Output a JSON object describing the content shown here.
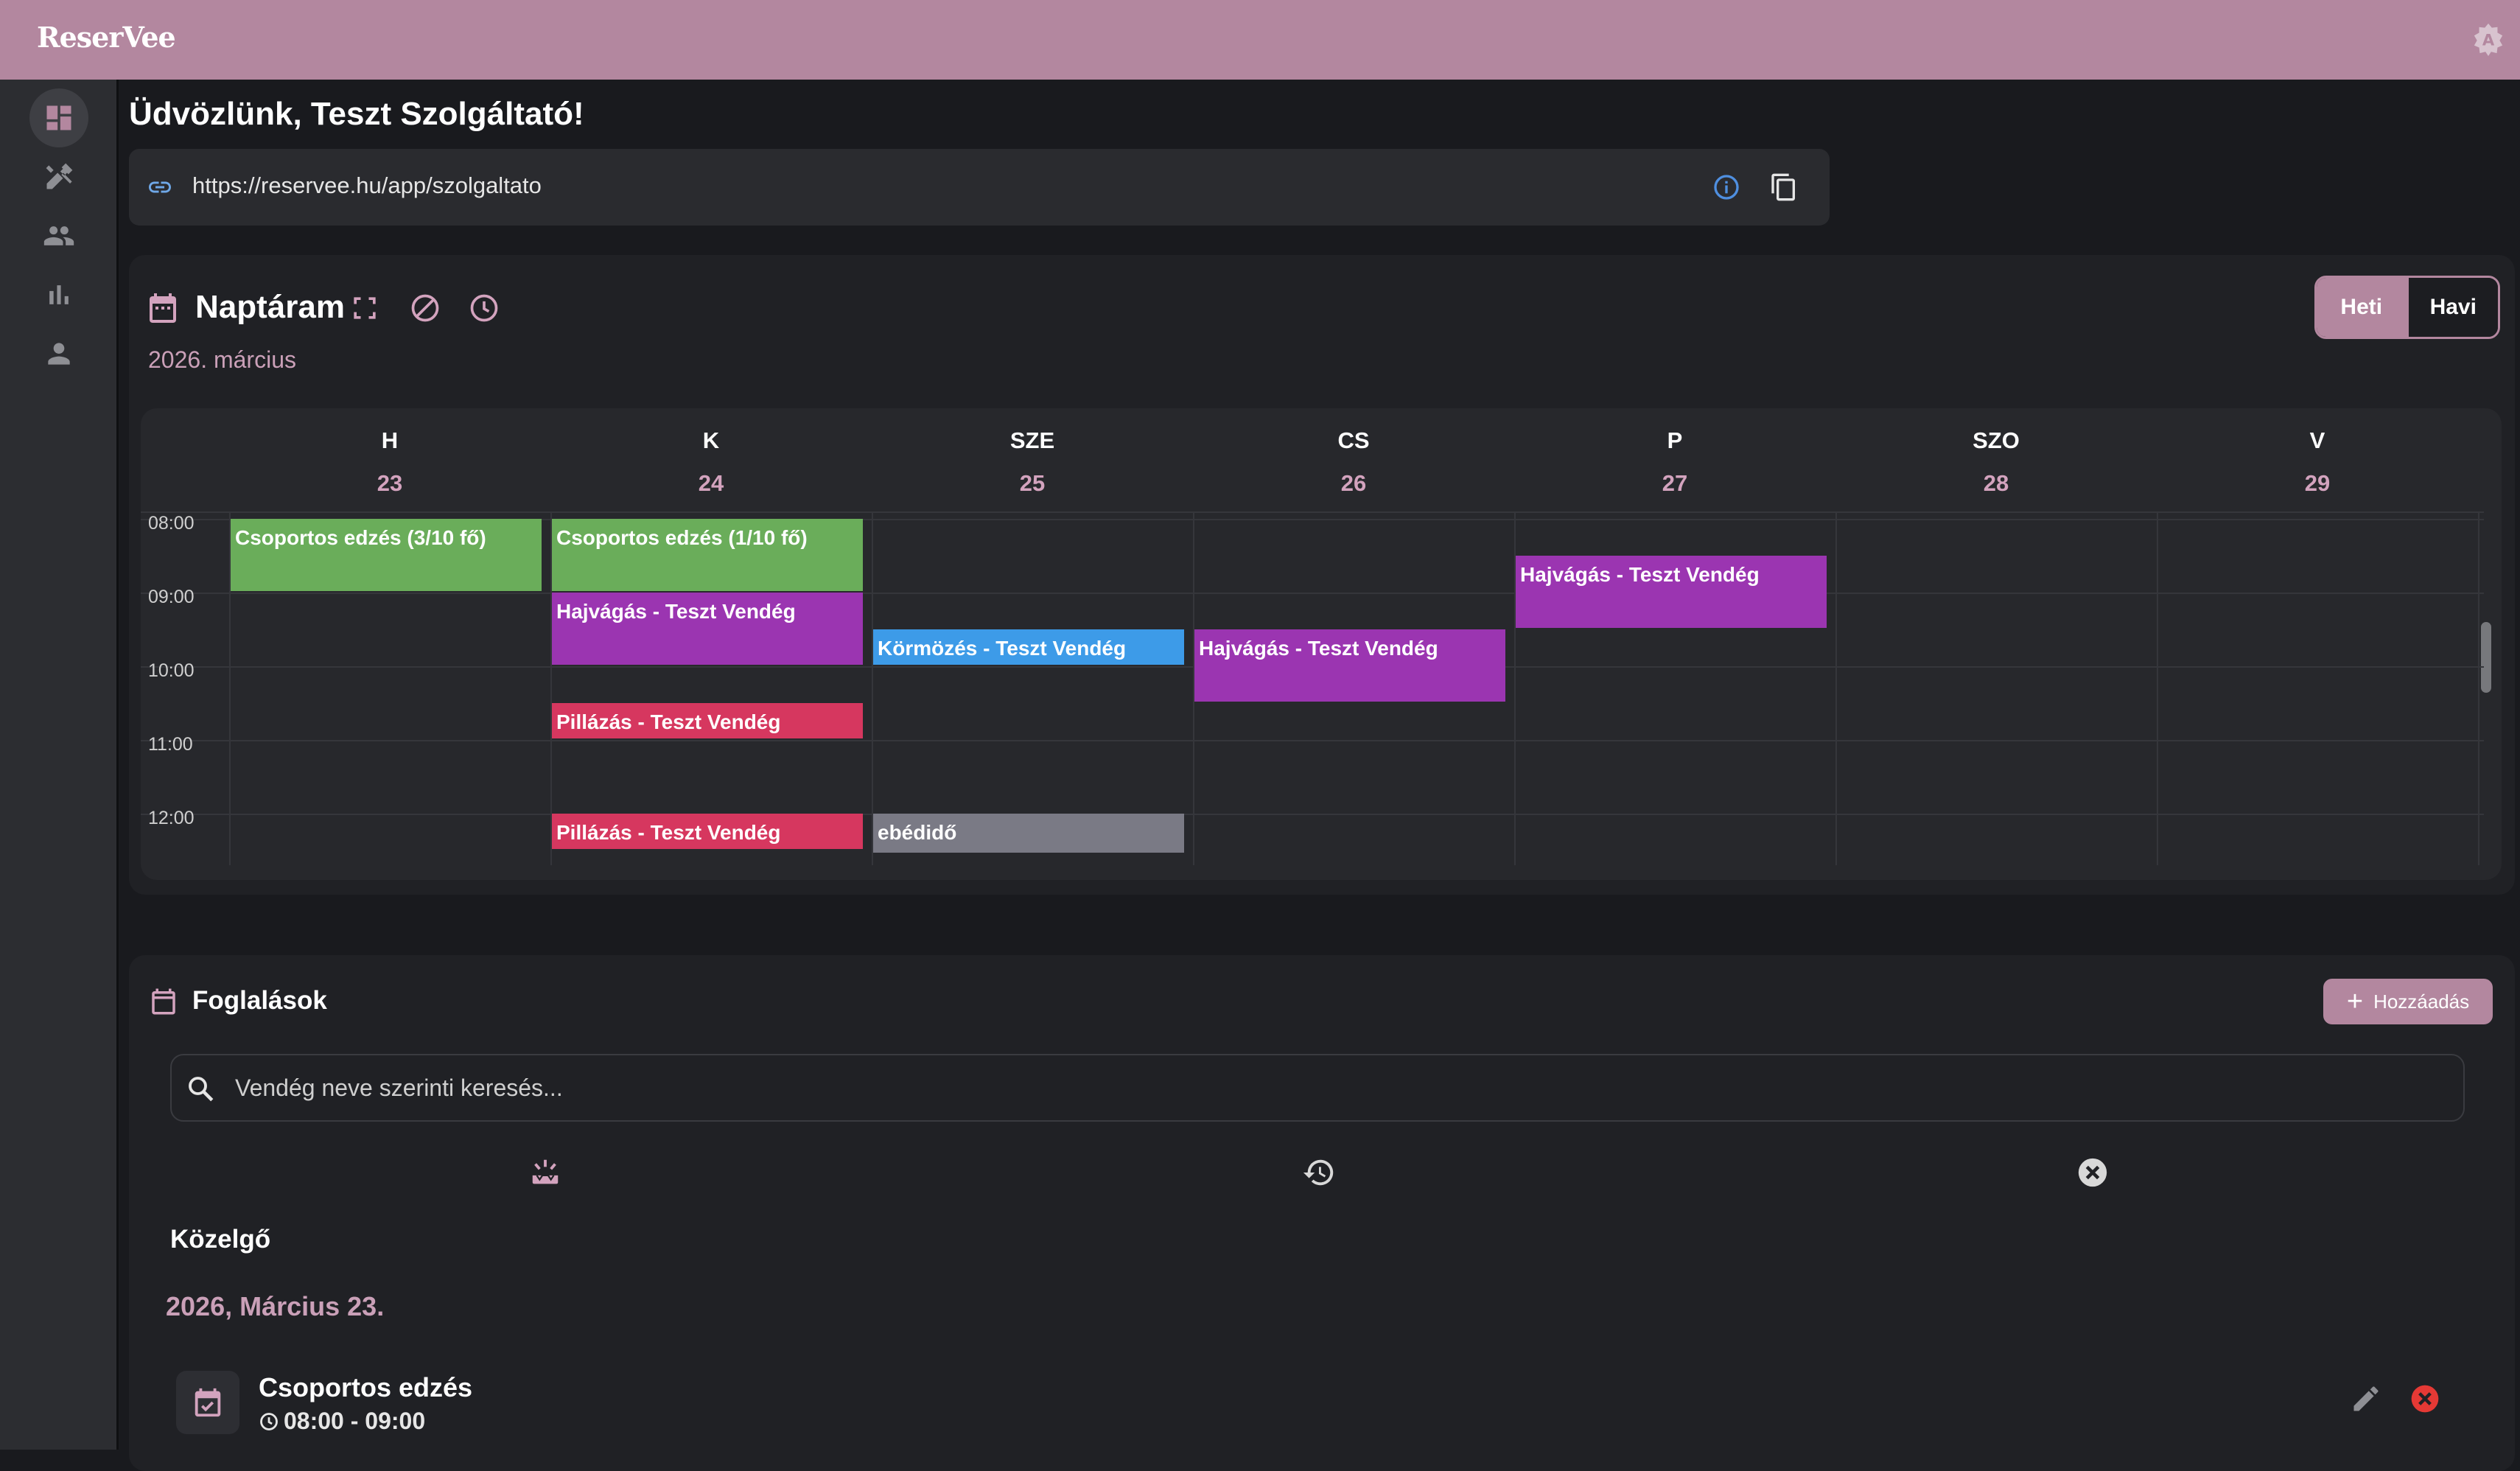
{
  "app": {
    "logo": "ReserVee"
  },
  "welcome": "Üdvözlünk, Teszt Szolgáltató!",
  "link": {
    "url": "https://reservee.hu/app/szolgaltato"
  },
  "calendar": {
    "title": "Naptáram",
    "month": "2026. március",
    "view_week": "Heti",
    "view_month": "Havi",
    "days": [
      {
        "name": "H",
        "date": "23"
      },
      {
        "name": "K",
        "date": "24"
      },
      {
        "name": "SZE",
        "date": "25"
      },
      {
        "name": "CS",
        "date": "26"
      },
      {
        "name": "P",
        "date": "27"
      },
      {
        "name": "SZO",
        "date": "28"
      },
      {
        "name": "V",
        "date": "29"
      }
    ],
    "times": [
      "08:00",
      "09:00",
      "10:00",
      "11:00",
      "12:00"
    ],
    "events": [
      {
        "label": "Csoportos edzés (3/10 fő)",
        "day": 0,
        "start": 8.0,
        "end": 9.0,
        "color": "#6aad5a"
      },
      {
        "label": "Csoportos edzés (1/10 fő)",
        "day": 1,
        "start": 8.0,
        "end": 9.0,
        "color": "#6aad5a"
      },
      {
        "label": "Hajvágás - Teszt Vendég",
        "day": 1,
        "start": 9.0,
        "end": 10.0,
        "color": "#9b35b1"
      },
      {
        "label": "Pillázás - Teszt Vendég",
        "day": 1,
        "start": 10.5,
        "end": 11.0,
        "color": "#d6375f"
      },
      {
        "label": "Pillázás - Teszt Vendég",
        "day": 1,
        "start": 12.0,
        "end": 12.5,
        "color": "#d6375f"
      },
      {
        "label": "Körmözés - Teszt Vendég",
        "day": 2,
        "start": 9.5,
        "end": 10.0,
        "color": "#3d9be8"
      },
      {
        "label": "ebédidő",
        "day": 2,
        "start": 12.0,
        "end": 12.55,
        "color": "#7a7a85"
      },
      {
        "label": "Hajvágás - Teszt Vendég",
        "day": 3,
        "start": 9.5,
        "end": 10.5,
        "color": "#9b35b1"
      },
      {
        "label": "Hajvágás - Teszt Vendég",
        "day": 4,
        "start": 8.5,
        "end": 9.5,
        "color": "#9b35b1"
      }
    ]
  },
  "bookings": {
    "title": "Foglalások",
    "add_label": "Hozzáadás",
    "search_placeholder": "Vendég neve szerinti keresés...",
    "section": "Közelgő",
    "date_heading": "2026, Március 23.",
    "items": [
      {
        "title": "Csoportos edzés",
        "time": "08:00 - 09:00"
      }
    ]
  },
  "colors": {
    "accent": "#b3879f",
    "background": "#191a1e"
  }
}
